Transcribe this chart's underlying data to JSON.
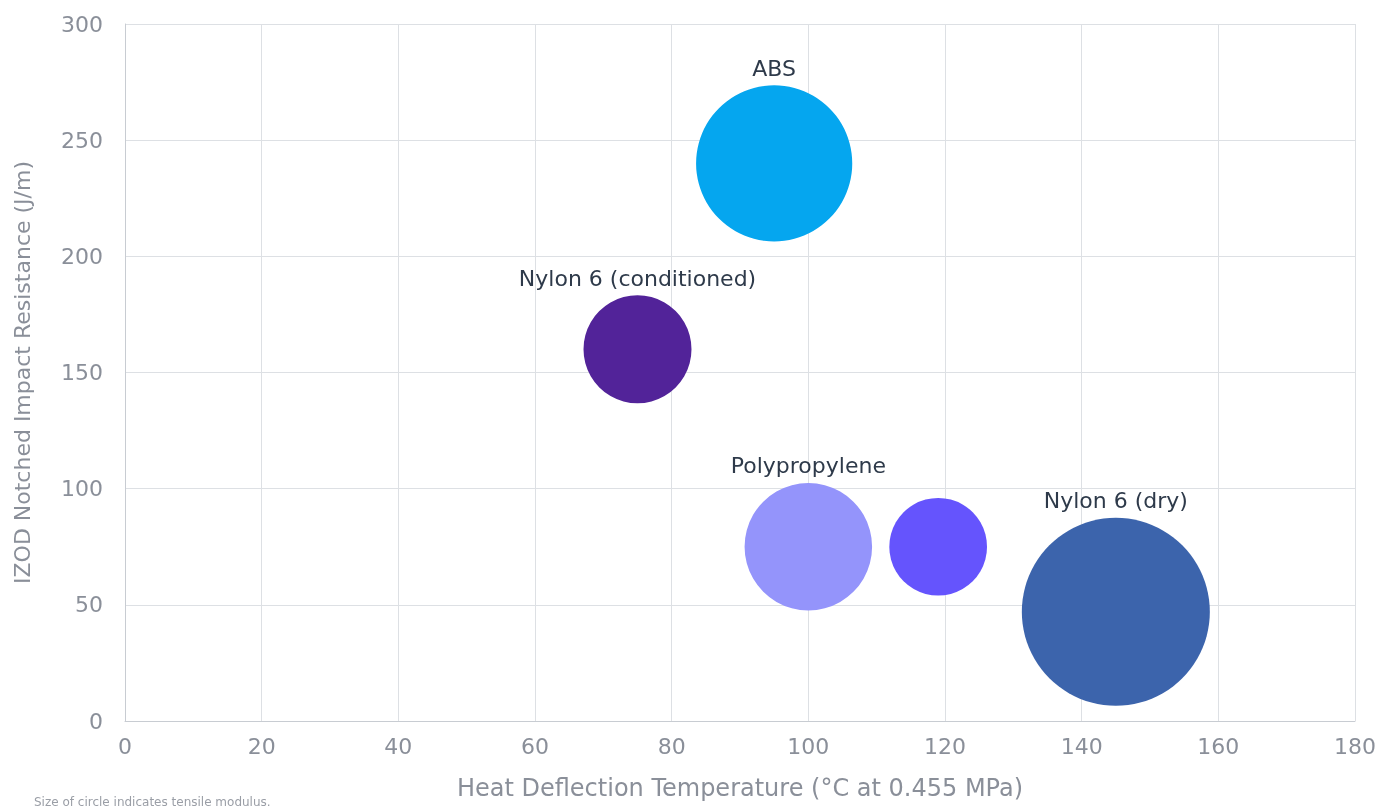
{
  "chart_data": {
    "type": "bubble",
    "xlabel": "Heat Deflection Temperature (°C at 0.455 MPa)",
    "ylabel": "IZOD Notched Impact Resistance (J/m)",
    "annotations": [
      "Size of circle indicates tensile modulus."
    ],
    "xlim": [
      0,
      180
    ],
    "xticks": [
      0,
      20,
      40,
      60,
      80,
      100,
      120,
      140,
      160,
      180
    ],
    "ylim": [
      0,
      300
    ],
    "yticks": [
      0,
      50,
      100,
      150,
      200,
      250,
      300
    ],
    "grid": true,
    "legend": false,
    "series": [
      {
        "name": "ABS",
        "color": "#05a6ef",
        "x": [
          95
        ],
        "values": [
          240
        ],
        "sizes": [
          0.69
        ]
      },
      {
        "name": "Nylon 6 (conditioned)",
        "color": "#522399",
        "x": [
          75
        ],
        "values": [
          160
        ],
        "sizes": [
          0.33
        ]
      },
      {
        "name": "Polypropylene",
        "color": "#9494fb",
        "x": [
          100
        ],
        "values": [
          75
        ],
        "sizes": [
          0.46
        ]
      },
      {
        "color": "#6554fd",
        "x": [
          119
        ],
        "values": [
          75
        ],
        "sizes": [
          0.27
        ]
      },
      {
        "name": "Nylon 6 (dry)",
        "color": "#3c64ac",
        "x": [
          145
        ],
        "values": [
          47
        ],
        "sizes": [
          1
        ]
      }
    ]
  }
}
